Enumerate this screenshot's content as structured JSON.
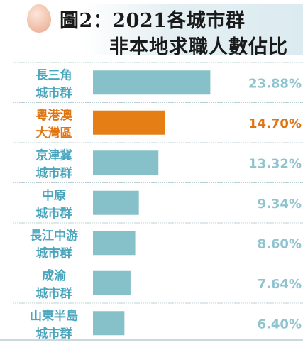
{
  "header": {
    "title_line1": "圖2：2021各城市群",
    "title_line2": "非本地求職人數佔比"
  },
  "colors": {
    "bar_default": "#86c0c9",
    "bar_highlight": "#e47e15",
    "label_default": "#49a6bd",
    "label_highlight": "#df7412",
    "value_default": "#8fc4cf",
    "value_highlight": "#df7412",
    "divider": "#b9d0d6"
  },
  "chart_data": {
    "type": "bar",
    "orientation": "horizontal",
    "title": "圖2：2021各城市群非本地求職人數佔比",
    "categories": [
      [
        "長三角",
        "城市群"
      ],
      [
        "粵港澳",
        "大灣區"
      ],
      [
        "京津冀",
        "城市群"
      ],
      [
        "中原",
        "城市群"
      ],
      [
        "長江中游",
        "城市群"
      ],
      [
        "成渝",
        "城市群"
      ],
      [
        "山東半島",
        "城市群"
      ]
    ],
    "values": [
      23.88,
      14.7,
      13.32,
      9.34,
      8.6,
      7.64,
      6.4
    ],
    "value_labels": [
      "23.88%",
      "14.70%",
      "13.32%",
      "9.34%",
      "8.60%",
      "7.64%",
      "6.40%"
    ],
    "highlight_index": 1,
    "xlim": [
      0,
      27
    ],
    "grid": false,
    "legend": "none"
  }
}
